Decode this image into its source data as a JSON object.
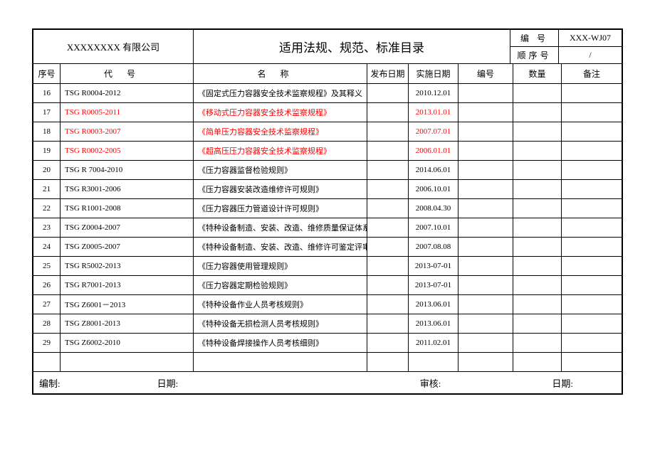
{
  "header": {
    "company": "XXXXXXXX 有限公司",
    "title": "适用法规、规范、标准目录",
    "meta": {
      "code_label": "编  号",
      "code_value": "XXX-WJ07",
      "seq_label": "顺序号",
      "seq_value": "/"
    }
  },
  "columns": {
    "seq": "序号",
    "code": "代号",
    "name": "名称",
    "pub": "发布日期",
    "impl": "实施日期",
    "num": "编号",
    "qty": "数量",
    "remark": "备注"
  },
  "rows": [
    {
      "seq": "16",
      "code": "TSG R0004-2012",
      "name": "《固定式压力容器安全技术监察规程》及其释义",
      "pub": "",
      "impl": "2010.12.01",
      "red": false
    },
    {
      "seq": "17",
      "code": "TSG R0005-2011",
      "name": "《移动式压力容器安全技术监察规程》",
      "pub": "",
      "impl": "2013.01.01",
      "red": true
    },
    {
      "seq": "18",
      "code": "TSG R0003-2007",
      "name": "《简单压力容器安全技术监察规程》",
      "pub": "",
      "impl": "2007.07.01",
      "red": true
    },
    {
      "seq": "19",
      "code": "TSG R0002-2005",
      "name": "《超高压压力容器安全技术监察规程》",
      "pub": "",
      "impl": "2006.01.01",
      "red": true
    },
    {
      "seq": "20",
      "code": "TSG R 7004-2010",
      "name": "《压力容器监督检验规则》",
      "pub": "",
      "impl": "2014.06.01",
      "red": false
    },
    {
      "seq": "21",
      "code": "TSG R3001-2006",
      "name": "《压力容器安装改造维修许可规则》",
      "pub": "",
      "impl": "2006.10.01",
      "red": false
    },
    {
      "seq": "22",
      "code": "TSG R1001-2008",
      "name": "《压力容器压力管道设计许可规则》",
      "pub": "",
      "impl": "2008.04.30",
      "red": false
    },
    {
      "seq": "23",
      "code": "TSG Z0004-2007",
      "name": "《特种设备制造、安装、改造、维修质量保证体系基本要求》",
      "pub": "",
      "impl": "2007.10.01",
      "red": false
    },
    {
      "seq": "24",
      "code": "TSG Z0005-2007",
      "name": "《特种设备制造、安装、改造、维修许可鉴定评审细则》",
      "pub": "",
      "impl": "2007.08.08",
      "red": false
    },
    {
      "seq": "25",
      "code": "TSG R5002-2013",
      "name": "《压力容器使用管理规则》",
      "pub": "",
      "impl": "2013-07-01",
      "red": false
    },
    {
      "seq": "26",
      "code": "TSG R7001-2013",
      "name": "《压力容器定期检验规则》",
      "pub": "",
      "impl": "2013-07-01",
      "red": false
    },
    {
      "seq": "27",
      "code": "TSG Z6001－2013",
      "name": "《特种设备作业人员考核规则》",
      "pub": "",
      "impl": "2013.06.01",
      "red": false
    },
    {
      "seq": "28",
      "code": "TSG Z8001-2013",
      "name": "《特种设备无损检测人员考核规则》",
      "pub": "",
      "impl": "2013.06.01",
      "red": false
    },
    {
      "seq": "29",
      "code": "TSG Z6002-2010",
      "name": "《特种设备焊接操作人员考核细则》",
      "pub": "",
      "impl": "2011.02.01",
      "red": false
    }
  ],
  "footer": {
    "compile": "编制:",
    "date1": "日期:",
    "review": "审核:",
    "date2": "日期:"
  },
  "style": {
    "border_color": "#000000",
    "red_color": "#ff0000",
    "background": "#ffffff",
    "font_family": "SimSun"
  }
}
